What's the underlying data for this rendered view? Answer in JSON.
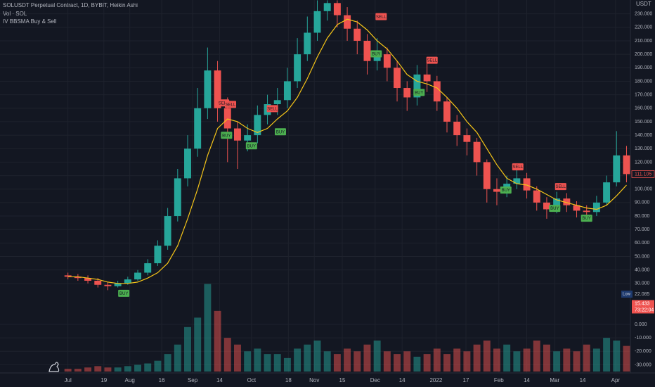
{
  "chart_data": {
    "type": "candlestick",
    "title": "SOLUSDT Perpetual Contract, 1D, BYBIT, Heikin Ashi",
    "y_unit": "USDT",
    "grid": true,
    "up_color": "#26a69a",
    "down_color": "#ef5350",
    "xlim": [
      -0.4,
      56.6
    ],
    "xticks": [
      {
        "value": 0,
        "label": "Jul"
      },
      {
        "value": 3.6,
        "label": "19"
      },
      {
        "value": 6.2,
        "label": "Aug"
      },
      {
        "value": 9.4,
        "label": "16"
      },
      {
        "value": 12.5,
        "label": "Sep"
      },
      {
        "value": 15.2,
        "label": "14"
      },
      {
        "value": 18.4,
        "label": "Oct"
      },
      {
        "value": 22.1,
        "label": "18"
      },
      {
        "value": 24.7,
        "label": "Nov"
      },
      {
        "value": 27.5,
        "label": "15"
      },
      {
        "value": 30.8,
        "label": "Dec"
      },
      {
        "value": 33.5,
        "label": "14"
      },
      {
        "value": 36.9,
        "label": "2022"
      },
      {
        "value": 39.9,
        "label": "17"
      },
      {
        "value": 43.2,
        "label": "Feb"
      },
      {
        "value": 46,
        "label": "14"
      },
      {
        "value": 48.8,
        "label": "Mar"
      },
      {
        "value": 51.6,
        "label": "14"
      },
      {
        "value": 54.9,
        "label": "Apr"
      }
    ],
    "ylim": [
      20,
      240
    ],
    "yticks": [
      {
        "value": 30,
        "label": "30.000"
      },
      {
        "value": 40,
        "label": "40.000"
      },
      {
        "value": 50,
        "label": "50.000"
      },
      {
        "value": 60,
        "label": "60.000"
      },
      {
        "value": 70,
        "label": "70.000"
      },
      {
        "value": 80,
        "label": "80.000"
      },
      {
        "value": 90,
        "label": "90.000"
      },
      {
        "value": 100,
        "label": "100.000"
      },
      {
        "value": 110,
        "label": "110.000"
      },
      {
        "value": 120,
        "label": "120.000"
      },
      {
        "value": 130,
        "label": "130.000"
      },
      {
        "value": 140,
        "label": "140.000"
      },
      {
        "value": 150,
        "label": "150.000"
      },
      {
        "value": 160,
        "label": "160.000"
      },
      {
        "value": 170,
        "label": "170.000"
      },
      {
        "value": 180,
        "label": "180.000"
      },
      {
        "value": 190,
        "label": "190.000"
      },
      {
        "value": 200,
        "label": "200.000"
      },
      {
        "value": 210,
        "label": "210.000"
      },
      {
        "value": 220,
        "label": "220.000"
      },
      {
        "value": 230,
        "label": "230.000"
      }
    ],
    "y2lim": [
      -35,
      35
    ],
    "y2ticks": [
      {
        "value": 0,
        "label": "0.000"
      },
      {
        "value": -10,
        "label": "-10.000"
      },
      {
        "value": -20,
        "label": "-20.000"
      },
      {
        "value": -30,
        "label": "-30.000"
      }
    ],
    "open": [
      36,
      35,
      34,
      32,
      29,
      28,
      30,
      33,
      38,
      45,
      58,
      80,
      108,
      130,
      160,
      188,
      160,
      145,
      136,
      140,
      155,
      163,
      166,
      180,
      200,
      216,
      232,
      238,
      229,
      219,
      210,
      195,
      200,
      190,
      175,
      168,
      185,
      180,
      165,
      150,
      140,
      135,
      120,
      100,
      98,
      104,
      108,
      99,
      90,
      85,
      93,
      88,
      84,
      83,
      90,
      105,
      125
    ],
    "high": [
      38,
      37,
      36,
      34,
      31,
      32,
      35,
      40,
      48,
      62,
      86,
      115,
      140,
      175,
      205,
      195,
      168,
      150,
      148,
      162,
      170,
      175,
      190,
      212,
      228,
      240,
      240,
      240,
      235,
      225,
      215,
      212,
      205,
      195,
      180,
      192,
      195,
      184,
      168,
      155,
      145,
      138,
      122,
      108,
      110,
      115,
      112,
      102,
      94,
      98,
      97,
      91,
      88,
      95,
      110,
      143,
      132
    ],
    "low": [
      33,
      32,
      30,
      27,
      25,
      27,
      29,
      32,
      36,
      43,
      55,
      76,
      102,
      124,
      152,
      150,
      120,
      115,
      128,
      134,
      148,
      155,
      160,
      175,
      195,
      210,
      225,
      220,
      210,
      200,
      185,
      188,
      180,
      165,
      158,
      162,
      172,
      158,
      142,
      132,
      125,
      110,
      90,
      88,
      94,
      100,
      93,
      84,
      78,
      82,
      83,
      79,
      78,
      80,
      88,
      102,
      105
    ],
    "close": [
      35,
      34,
      32,
      29,
      28,
      30,
      33,
      38,
      45,
      58,
      80,
      108,
      130,
      160,
      188,
      160,
      145,
      136,
      140,
      155,
      163,
      166,
      180,
      200,
      216,
      232,
      238,
      229,
      219,
      210,
      195,
      200,
      190,
      175,
      168,
      185,
      180,
      165,
      150,
      140,
      135,
      120,
      100,
      98,
      104,
      108,
      99,
      90,
      85,
      93,
      88,
      84,
      83,
      90,
      105,
      125,
      111.105
    ],
    "volume": {
      "name": "Vol · SOL",
      "axis": "y2",
      "values": [
        -33,
        -33,
        -32,
        -31,
        -32,
        -32,
        -31,
        -30,
        -29,
        -27,
        -22,
        -15,
        -2,
        5,
        30,
        10,
        -10,
        -15,
        -20,
        -18,
        -22,
        -22,
        -25,
        -18,
        -15,
        -12,
        -20,
        -22,
        -18,
        -20,
        -15,
        -12,
        -20,
        -22,
        -20,
        -24,
        -22,
        -18,
        -22,
        -18,
        -20,
        -15,
        -12,
        -18,
        -15,
        -20,
        -18,
        -12,
        -15,
        -20,
        -18,
        -20,
        -15,
        -18,
        -10,
        -12,
        -16
      ]
    },
    "indicator": {
      "name": "IV BBSMA Buy & Sell",
      "color": "#f5c518",
      "values": [
        35,
        35,
        34,
        33,
        31,
        30,
        30,
        31,
        34,
        38,
        45,
        58,
        78,
        100,
        125,
        145,
        152,
        150,
        145,
        142,
        145,
        152,
        158,
        168,
        182,
        198,
        212,
        222,
        226,
        224,
        218,
        210,
        204,
        195,
        185,
        180,
        178,
        175,
        168,
        160,
        150,
        142,
        130,
        118,
        108,
        104,
        103,
        100,
        96,
        92,
        90,
        88,
        86,
        85,
        88,
        95,
        103
      ]
    },
    "signals": [
      {
        "text": "BUY",
        "x": 5.6,
        "y": 22.7,
        "color": "#4caf50"
      },
      {
        "text": "SELL",
        "x": 15.6,
        "y": 163.9,
        "color": "#f05350"
      },
      {
        "text": "SELL",
        "x": 16.3,
        "y": 162.8,
        "color": "#f05350"
      },
      {
        "text": "BUY",
        "x": 15.9,
        "y": 139.9,
        "color": "#4caf50"
      },
      {
        "text": "BUY",
        "x": 18.4,
        "y": 132.1,
        "color": "#4caf50"
      },
      {
        "text": "SELL",
        "x": 20.5,
        "y": 159.7,
        "color": "#f05350"
      },
      {
        "text": "BUY",
        "x": 21.3,
        "y": 142.5,
        "color": "#4caf50"
      },
      {
        "text": "BUY",
        "x": 30.9,
        "y": 200.3,
        "color": "#4caf50"
      },
      {
        "text": "SELL",
        "x": 31.4,
        "y": 227.9,
        "color": "#f05350"
      },
      {
        "text": "BUY",
        "x": 35.2,
        "y": 171.7,
        "color": "#4caf50"
      },
      {
        "text": "SELL",
        "x": 36.5,
        "y": 195.6,
        "color": "#f05350"
      },
      {
        "text": "BUY",
        "x": 43.9,
        "y": 99.3,
        "color": "#4caf50"
      },
      {
        "text": "SELL",
        "x": 45.1,
        "y": 116.5,
        "color": "#f05350"
      },
      {
        "text": "BUY",
        "x": 48.8,
        "y": 85.7,
        "color": "#4caf50"
      },
      {
        "text": "SELL",
        "x": 49.4,
        "y": 101.9,
        "color": "#f05350"
      },
      {
        "text": "BUY",
        "x": 52,
        "y": 78.4,
        "color": "#4caf50"
      }
    ],
    "low_marker": {
      "label": "Low",
      "value": 22.085
    },
    "volume_marker": {
      "value": 15.433,
      "countdown": "73:22:04"
    }
  }
}
